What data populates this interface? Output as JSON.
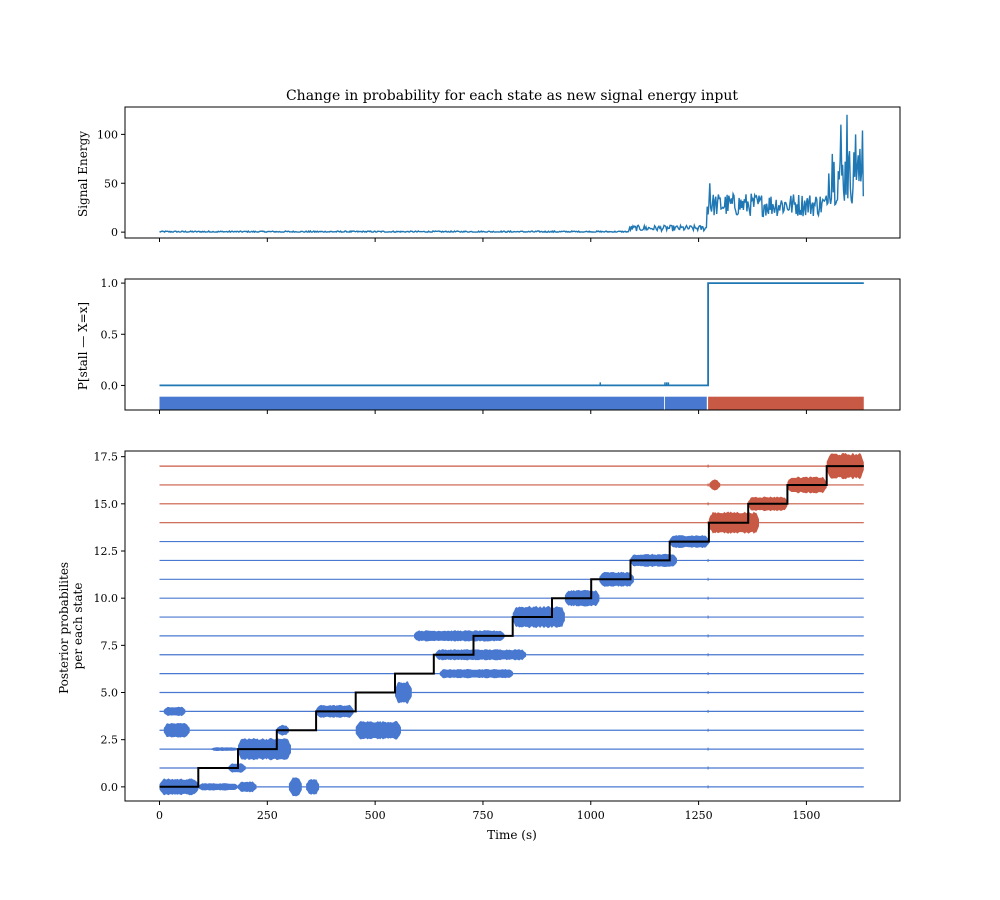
{
  "chart_data": [
    {
      "id": "signal",
      "type": "line",
      "title": "Change in probability for each state as new signal energy input",
      "ylabel": "Signal Energy",
      "xlabel": "",
      "xlim": [
        -80,
        1717
      ],
      "ylim": [
        -6,
        128
      ],
      "xticks": [
        0,
        250,
        500,
        750,
        1000,
        1250,
        1500
      ],
      "xtick_labels_visible": false,
      "yticks": [
        0,
        50,
        100
      ],
      "ytick_labels": [
        "0",
        "50",
        "100"
      ],
      "grid": false,
      "colors": {
        "line": "#1f77b4"
      },
      "segments": [
        {
          "x_range": [
            0,
            1090
          ],
          "base": 0.4,
          "noise": 0.8
        },
        {
          "x_range": [
            1090,
            1270
          ],
          "base": 4,
          "noise": 3
        },
        {
          "x_range": [
            1270,
            1550
          ],
          "base": 28,
          "noise": 12
        },
        {
          "x_range": [
            1550,
            1633
          ],
          "base": 58,
          "noise": 30
        }
      ],
      "peaks": [
        {
          "x": 1276,
          "y": 50
        },
        {
          "x": 1560,
          "y": 80
        },
        {
          "x": 1580,
          "y": 110
        },
        {
          "x": 1595,
          "y": 120
        },
        {
          "x": 1615,
          "y": 100
        },
        {
          "x": 1630,
          "y": 104
        }
      ]
    },
    {
      "id": "prob",
      "type": "line",
      "ylabel": "P[stall — X=x]",
      "xlim": [
        -80,
        1717
      ],
      "ylim": [
        -0.24,
        1.04
      ],
      "xticks": [
        0,
        250,
        500,
        750,
        1000,
        1250,
        1500
      ],
      "xtick_labels_visible": false,
      "yticks": [
        0.0,
        0.5,
        1.0
      ],
      "ytick_labels": [
        "0.0",
        "0.5",
        "1.0"
      ],
      "grid": false,
      "x": [
        0,
        1272,
        1272,
        1633
      ],
      "y": [
        0,
        0,
        1,
        1
      ],
      "blips": [
        1022,
        1172,
        1176,
        1180
      ],
      "state_bar": {
        "y_range": [
          -0.24,
          -0.11
        ],
        "segments": [
          {
            "from": 0,
            "to": 1170,
            "state": "normal"
          },
          {
            "from": 1172,
            "to": 1269,
            "state": "normal"
          },
          {
            "from": 1272,
            "to": 1633,
            "state": "stall"
          }
        ]
      },
      "colors": {
        "line": "#1f77b4",
        "normal": "#4878cf",
        "stall": "#c85a45"
      }
    },
    {
      "id": "posterior",
      "type": "area",
      "ylabel": "Posterior probabilites per each state",
      "xlabel": "Time (s)",
      "xlim": [
        -80,
        1717
      ],
      "ylim": [
        -0.75,
        17.8
      ],
      "xticks": [
        0,
        250,
        500,
        750,
        1000,
        1250,
        1500
      ],
      "xtick_labels": [
        "0",
        "250",
        "500",
        "750",
        "1000",
        "1250",
        "1500"
      ],
      "yticks": [
        0,
        2.5,
        5,
        7.5,
        10,
        12.5,
        15,
        17.5
      ],
      "ytick_labels": [
        "0.0",
        "2.5",
        "5.0",
        "7.5",
        "10.0",
        "12.5",
        "15.0",
        "17.5"
      ],
      "grid": false,
      "states": 18,
      "normal_states": [
        0,
        1,
        2,
        3,
        4,
        5,
        6,
        7,
        8,
        9,
        10,
        11,
        12,
        13
      ],
      "stall_states": [
        14,
        15,
        16,
        17
      ],
      "x_range": [
        0,
        1633
      ],
      "step_path": {
        "change_x": [
          90,
          182,
          272,
          363,
          455,
          546,
          636,
          728,
          819,
          910,
          1001,
          1092,
          1183,
          1274,
          1365,
          1456,
          1547
        ],
        "levels": [
          0,
          1,
          2,
          3,
          4,
          5,
          6,
          7,
          8,
          9,
          10,
          11,
          12,
          13,
          14,
          15,
          16,
          17
        ]
      },
      "bands": [
        {
          "state": 0,
          "from": 0,
          "to": 90,
          "half": 0.45
        },
        {
          "state": 0,
          "from": 90,
          "to": 182,
          "half": 0.2
        },
        {
          "state": 0,
          "from": 182,
          "to": 225,
          "half": 0.3
        },
        {
          "state": 0,
          "from": 300,
          "to": 330,
          "half": 0.5
        },
        {
          "state": 0,
          "from": 340,
          "to": 370,
          "half": 0.45
        },
        {
          "state": 1,
          "from": 160,
          "to": 200,
          "half": 0.25
        },
        {
          "state": 2,
          "from": 120,
          "to": 182,
          "half": 0.1
        },
        {
          "state": 2,
          "from": 182,
          "to": 305,
          "half": 0.6
        },
        {
          "state": 3,
          "from": 10,
          "to": 70,
          "half": 0.4
        },
        {
          "state": 3,
          "from": 272,
          "to": 300,
          "half": 0.3
        },
        {
          "state": 3,
          "from": 455,
          "to": 560,
          "half": 0.5
        },
        {
          "state": 4,
          "from": 10,
          "to": 60,
          "half": 0.25
        },
        {
          "state": 4,
          "from": 363,
          "to": 450,
          "half": 0.35
        },
        {
          "state": 5,
          "from": 546,
          "to": 585,
          "half": 0.6
        },
        {
          "state": 6,
          "from": 650,
          "to": 820,
          "half": 0.25
        },
        {
          "state": 7,
          "from": 640,
          "to": 850,
          "half": 0.3
        },
        {
          "state": 8,
          "from": 590,
          "to": 800,
          "half": 0.3
        },
        {
          "state": 9,
          "from": 819,
          "to": 940,
          "half": 0.6
        },
        {
          "state": 10,
          "from": 940,
          "to": 1020,
          "half": 0.45
        },
        {
          "state": 11,
          "from": 1020,
          "to": 1100,
          "half": 0.4
        },
        {
          "state": 12,
          "from": 1092,
          "to": 1200,
          "half": 0.35
        },
        {
          "state": 13,
          "from": 1183,
          "to": 1274,
          "half": 0.35
        },
        {
          "state": 14,
          "from": 1274,
          "to": 1390,
          "half": 0.6
        },
        {
          "state": 15,
          "from": 1365,
          "to": 1456,
          "half": 0.4
        },
        {
          "state": 16,
          "from": 1275,
          "to": 1300,
          "half": 0.3
        },
        {
          "state": 16,
          "from": 1456,
          "to": 1547,
          "half": 0.45
        },
        {
          "state": 17,
          "from": 1547,
          "to": 1633,
          "half": 0.7
        }
      ],
      "colors": {
        "normal": "#4878cf",
        "stall": "#c85a45",
        "step": "#000000"
      }
    }
  ]
}
